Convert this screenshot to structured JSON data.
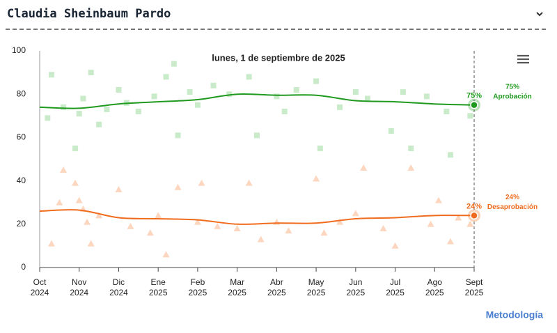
{
  "header": {
    "title": "Claudia Sheinbaum Pardo"
  },
  "link": "Metodología",
  "chart_data": {
    "type": "line",
    "hover_label": "lunes, 1 de septiembre de 2025",
    "xlim": [
      0,
      11
    ],
    "xticks": [
      {
        "value": 0,
        "label": "Oct"
      },
      {
        "value": 1,
        "label": "Nov"
      },
      {
        "value": 2,
        "label": "Dic"
      },
      {
        "value": 3,
        "label": "Ene"
      },
      {
        "value": 4,
        "label": "Feb"
      },
      {
        "value": 5,
        "label": "Mar"
      },
      {
        "value": 6,
        "label": "Abr"
      },
      {
        "value": 7,
        "label": "May"
      },
      {
        "value": 8,
        "label": "Jun"
      },
      {
        "value": 9,
        "label": "Jul"
      },
      {
        "value": 10,
        "label": "Ago"
      },
      {
        "value": 11,
        "label": "Sept"
      }
    ],
    "xtick_years": [
      "2024",
      "2024",
      "2024",
      "2025",
      "2025",
      "2025",
      "2025",
      "2025",
      "2025",
      "2025",
      "2025",
      "2025"
    ],
    "ylim": [
      0,
      100
    ],
    "yticks": [
      0,
      20,
      40,
      60,
      80,
      100
    ],
    "cursor_x": 11,
    "series": [
      {
        "type": "scatter",
        "marker": "square",
        "color": "#c9ebc9",
        "x": [
          0.2,
          0.3,
          0.6,
          0.9,
          1.0,
          1.1,
          1.3,
          1.5,
          1.7,
          2.0,
          2.2,
          2.5,
          2.9,
          3.2,
          3.4,
          3.5,
          3.8,
          4.0,
          4.4,
          4.8,
          5.3,
          5.5,
          6.0,
          6.2,
          6.5,
          7.0,
          7.1,
          7.6,
          8.0,
          8.3,
          8.9,
          9.2,
          9.4,
          9.8,
          10.3,
          10.4,
          10.9,
          11.0
        ],
        "values": [
          69,
          89,
          74,
          55,
          71,
          78,
          90,
          66,
          73,
          82,
          76,
          72,
          79,
          88,
          94,
          61,
          81,
          75,
          84,
          80,
          88,
          61,
          79,
          72,
          82,
          86,
          55,
          74,
          81,
          78,
          63,
          81,
          55,
          79,
          72,
          52,
          70,
          75
        ]
      },
      {
        "type": "scatter",
        "marker": "triangle",
        "color": "#fdd6bf",
        "x": [
          0.3,
          0.5,
          0.6,
          0.9,
          1.0,
          1.1,
          1.2,
          1.3,
          1.5,
          2.0,
          2.3,
          2.8,
          3.0,
          3.2,
          3.5,
          4.0,
          4.1,
          4.5,
          5.0,
          5.3,
          5.6,
          6.0,
          6.3,
          7.0,
          7.2,
          7.6,
          8.0,
          8.2,
          8.7,
          9.0,
          9.4,
          9.9,
          10.1,
          10.4,
          10.6,
          10.9
        ],
        "values": [
          11,
          30,
          45,
          39,
          31,
          27,
          21,
          11,
          24,
          36,
          19,
          16,
          24,
          6,
          37,
          21,
          39,
          19,
          18,
          39,
          13,
          21,
          17,
          41,
          16,
          21,
          25,
          46,
          18,
          10,
          46,
          20,
          31,
          12,
          23,
          20
        ]
      },
      {
        "name": "Aprobación",
        "color": "#1f9a1f",
        "x": [
          0,
          1,
          2,
          3,
          4,
          5,
          6,
          7,
          8,
          9,
          10,
          11
        ],
        "values": [
          74,
          73.5,
          75.5,
          76.5,
          77.5,
          80,
          79.5,
          79.5,
          77,
          76.5,
          75.5,
          75
        ],
        "value_labels": [
          null,
          null,
          null,
          null,
          null,
          null,
          null,
          null,
          null,
          null,
          null,
          "75%"
        ]
      },
      {
        "name": "Desaprobación",
        "color": "#ef6c1e",
        "x": [
          0,
          1,
          2,
          3,
          4,
          5,
          6,
          7,
          8,
          9,
          10,
          11
        ],
        "values": [
          26,
          26.5,
          23,
          22.5,
          22,
          20,
          20.5,
          20.5,
          22.5,
          23,
          24,
          24
        ],
        "value_labels": [
          null,
          null,
          null,
          null,
          null,
          null,
          null,
          null,
          null,
          null,
          null,
          "24%"
        ]
      }
    ]
  }
}
